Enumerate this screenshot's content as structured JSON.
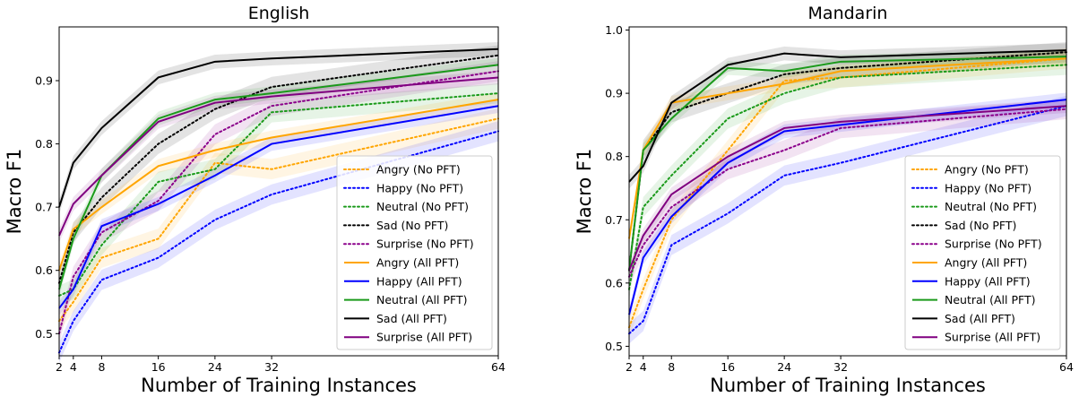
{
  "chart_data": [
    {
      "type": "line",
      "title": "English",
      "xlabel": "Number of Training Instances",
      "ylabel": "Macro F1",
      "xlim": [
        2,
        64
      ],
      "ylim": [
        0.465,
        0.985
      ],
      "xticks": [
        2,
        4,
        8,
        16,
        24,
        32,
        64
      ],
      "yticks": [
        0.5,
        0.6,
        0.7,
        0.8,
        0.9
      ],
      "ytick_labels": [
        "0.5",
        "0.6",
        "0.7",
        "0.8",
        "0.9"
      ],
      "grid": false,
      "shaded_band": "light shaded band around each series",
      "legend_position": "lower-right",
      "x": [
        2,
        4,
        8,
        16,
        24,
        32,
        64
      ],
      "series": [
        {
          "name": "Angry (No PFT)",
          "color": "#FFA500",
          "style": "dotted",
          "values": [
            0.52,
            0.55,
            0.62,
            0.65,
            0.77,
            0.76,
            0.84
          ]
        },
        {
          "name": "Happy (No PFT)",
          "color": "#0000FF",
          "style": "dotted",
          "values": [
            0.47,
            0.52,
            0.585,
            0.62,
            0.68,
            0.72,
            0.82
          ]
        },
        {
          "name": "Neutral (No PFT)",
          "color": "#1A9A1A",
          "style": "dotted",
          "values": [
            0.56,
            0.57,
            0.64,
            0.74,
            0.76,
            0.85,
            0.88
          ]
        },
        {
          "name": "Sad (No PFT)",
          "color": "#000000",
          "style": "dotted",
          "values": [
            0.58,
            0.66,
            0.715,
            0.8,
            0.855,
            0.89,
            0.94
          ]
        },
        {
          "name": "Surprise (No PFT)",
          "color": "#8B008B",
          "style": "dotted",
          "values": [
            0.5,
            0.59,
            0.66,
            0.71,
            0.815,
            0.86,
            0.915
          ]
        },
        {
          "name": "Angry (All PFT)",
          "color": "#FFA500",
          "style": "solid",
          "values": [
            0.6,
            0.665,
            0.7,
            0.765,
            0.79,
            0.81,
            0.87
          ]
        },
        {
          "name": "Happy (All PFT)",
          "color": "#0000FF",
          "style": "solid",
          "values": [
            0.54,
            0.57,
            0.67,
            0.705,
            0.75,
            0.8,
            0.86
          ]
        },
        {
          "name": "Neutral (All PFT)",
          "color": "#1A9A1A",
          "style": "solid",
          "values": [
            0.57,
            0.65,
            0.75,
            0.84,
            0.87,
            0.88,
            0.925
          ]
        },
        {
          "name": "Sad (All PFT)",
          "color": "#000000",
          "style": "solid",
          "values": [
            0.7,
            0.77,
            0.825,
            0.905,
            0.93,
            0.935,
            0.95
          ]
        },
        {
          "name": "Surprise (All PFT)",
          "color": "#800080",
          "style": "solid",
          "values": [
            0.655,
            0.705,
            0.75,
            0.835,
            0.865,
            0.875,
            0.905
          ]
        }
      ]
    },
    {
      "type": "line",
      "title": "Mandarin",
      "xlabel": "Number of Training Instances",
      "ylabel": "Macro F1",
      "xlim": [
        2,
        64
      ],
      "ylim": [
        0.485,
        1.005
      ],
      "xticks": [
        2,
        4,
        8,
        16,
        24,
        32,
        64
      ],
      "yticks": [
        0.5,
        0.6,
        0.7,
        0.8,
        0.9,
        1.0
      ],
      "ytick_labels": [
        "0.5",
        "0.6",
        "0.7",
        "0.8",
        "0.9",
        "1.0"
      ],
      "grid": false,
      "shaded_band": "light shaded band around each series",
      "legend_position": "lower-right",
      "x": [
        2,
        4,
        8,
        16,
        24,
        32,
        64
      ],
      "series": [
        {
          "name": "Angry (No PFT)",
          "color": "#FFA500",
          "style": "dotted",
          "values": [
            0.53,
            0.59,
            0.7,
            0.81,
            0.92,
            0.925,
            0.955
          ]
        },
        {
          "name": "Happy (No PFT)",
          "color": "#0000FF",
          "style": "dotted",
          "values": [
            0.52,
            0.54,
            0.66,
            0.71,
            0.77,
            0.79,
            0.88
          ]
        },
        {
          "name": "Neutral (No PFT)",
          "color": "#1A9A1A",
          "style": "dotted",
          "values": [
            0.59,
            0.72,
            0.77,
            0.86,
            0.9,
            0.925,
            0.945
          ]
        },
        {
          "name": "Sad (No PFT)",
          "color": "#000000",
          "style": "dotted",
          "values": [
            0.62,
            0.81,
            0.87,
            0.9,
            0.93,
            0.94,
            0.965
          ]
        },
        {
          "name": "Surprise (No PFT)",
          "color": "#8B008B",
          "style": "dotted",
          "values": [
            0.61,
            0.66,
            0.72,
            0.78,
            0.81,
            0.845,
            0.875
          ]
        },
        {
          "name": "Angry (All PFT)",
          "color": "#FFA500",
          "style": "solid",
          "values": [
            0.67,
            0.81,
            0.885,
            0.9,
            0.915,
            0.935,
            0.955
          ]
        },
        {
          "name": "Happy (All PFT)",
          "color": "#0000FF",
          "style": "solid",
          "values": [
            0.55,
            0.64,
            0.705,
            0.79,
            0.84,
            0.85,
            0.89
          ]
        },
        {
          "name": "Neutral (All PFT)",
          "color": "#1A9A1A",
          "style": "solid",
          "values": [
            0.62,
            0.81,
            0.86,
            0.94,
            0.935,
            0.95,
            0.958
          ]
        },
        {
          "name": "Sad (All PFT)",
          "color": "#000000",
          "style": "solid",
          "values": [
            0.76,
            0.785,
            0.885,
            0.945,
            0.963,
            0.957,
            0.968
          ]
        },
        {
          "name": "Surprise (All PFT)",
          "color": "#800080",
          "style": "solid",
          "values": [
            0.62,
            0.675,
            0.74,
            0.8,
            0.845,
            0.855,
            0.88
          ]
        }
      ]
    }
  ]
}
